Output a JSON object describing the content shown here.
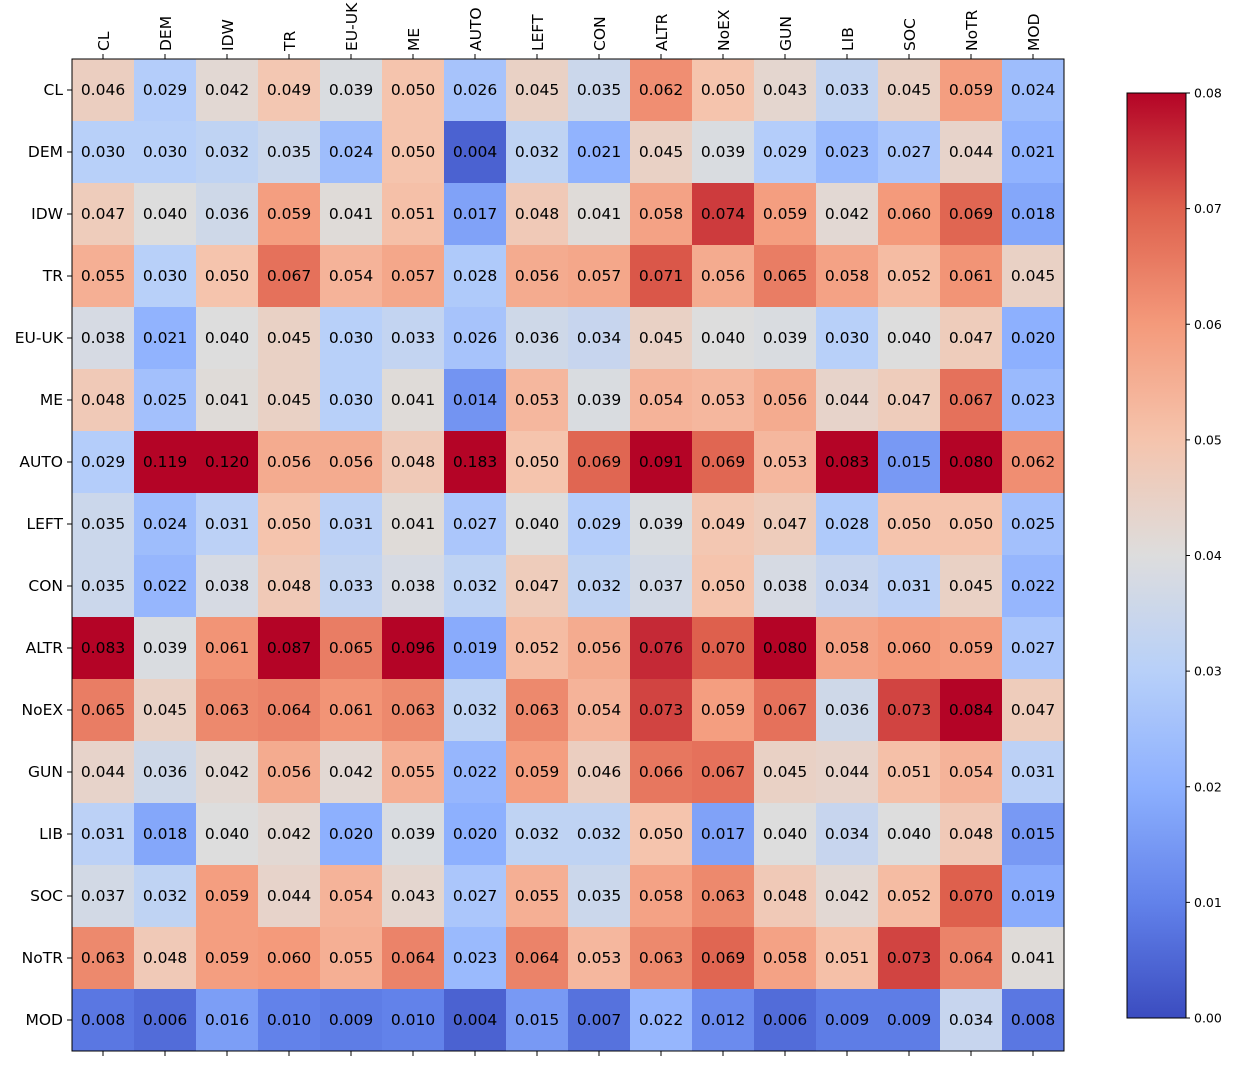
{
  "chart_data": {
    "type": "heatmap",
    "title": "",
    "xlabel": "",
    "ylabel": "",
    "rows": [
      "CL",
      "DEM",
      "IDW",
      "TR",
      "EU-UK",
      "ME",
      "AUTO",
      "LEFT",
      "CON",
      "ALTR",
      "NoEX",
      "GUN",
      "LIB",
      "SOC",
      "NoTR",
      "MOD"
    ],
    "columns": [
      "CL",
      "DEM",
      "IDW",
      "TR",
      "EU-UK",
      "ME",
      "AUTO",
      "LEFT",
      "CON",
      "ALTR",
      "NoEX",
      "GUN",
      "LIB",
      "SOC",
      "NoTR",
      "MOD"
    ],
    "values": [
      [
        0.046,
        0.029,
        0.042,
        0.049,
        0.039,
        0.05,
        0.026,
        0.045,
        0.035,
        0.062,
        0.05,
        0.043,
        0.033,
        0.045,
        0.059,
        0.024
      ],
      [
        0.03,
        0.03,
        0.032,
        0.035,
        0.024,
        0.05,
        0.004,
        0.032,
        0.021,
        0.045,
        0.039,
        0.029,
        0.023,
        0.027,
        0.044,
        0.021
      ],
      [
        0.047,
        0.04,
        0.036,
        0.059,
        0.041,
        0.051,
        0.017,
        0.048,
        0.041,
        0.058,
        0.074,
        0.059,
        0.042,
        0.06,
        0.069,
        0.018
      ],
      [
        0.055,
        0.03,
        0.05,
        0.067,
        0.054,
        0.057,
        0.028,
        0.056,
        0.057,
        0.071,
        0.056,
        0.065,
        0.058,
        0.052,
        0.061,
        0.045
      ],
      [
        0.038,
        0.021,
        0.04,
        0.045,
        0.03,
        0.033,
        0.026,
        0.036,
        0.034,
        0.045,
        0.04,
        0.039,
        0.03,
        0.04,
        0.047,
        0.02
      ],
      [
        0.048,
        0.025,
        0.041,
        0.045,
        0.03,
        0.041,
        0.014,
        0.053,
        0.039,
        0.054,
        0.053,
        0.056,
        0.044,
        0.047,
        0.067,
        0.023
      ],
      [
        0.029,
        0.119,
        0.12,
        0.056,
        0.056,
        0.048,
        0.183,
        0.05,
        0.069,
        0.091,
        0.069,
        0.053,
        0.083,
        0.015,
        0.08,
        0.062
      ],
      [
        0.035,
        0.024,
        0.031,
        0.05,
        0.031,
        0.041,
        0.027,
        0.04,
        0.029,
        0.039,
        0.049,
        0.047,
        0.028,
        0.05,
        0.05,
        0.025
      ],
      [
        0.035,
        0.022,
        0.038,
        0.048,
        0.033,
        0.038,
        0.032,
        0.047,
        0.032,
        0.037,
        0.05,
        0.038,
        0.034,
        0.031,
        0.045,
        0.022
      ],
      [
        0.083,
        0.039,
        0.061,
        0.087,
        0.065,
        0.096,
        0.019,
        0.052,
        0.056,
        0.076,
        0.07,
        0.08,
        0.058,
        0.06,
        0.059,
        0.027
      ],
      [
        0.065,
        0.045,
        0.063,
        0.064,
        0.061,
        0.063,
        0.032,
        0.063,
        0.054,
        0.073,
        0.059,
        0.067,
        0.036,
        0.073,
        0.084,
        0.047
      ],
      [
        0.044,
        0.036,
        0.042,
        0.056,
        0.042,
        0.055,
        0.022,
        0.059,
        0.046,
        0.066,
        0.067,
        0.045,
        0.044,
        0.051,
        0.054,
        0.031
      ],
      [
        0.031,
        0.018,
        0.04,
        0.042,
        0.02,
        0.039,
        0.02,
        0.032,
        0.032,
        0.05,
        0.017,
        0.04,
        0.034,
        0.04,
        0.048,
        0.015
      ],
      [
        0.037,
        0.032,
        0.059,
        0.044,
        0.054,
        0.043,
        0.027,
        0.055,
        0.035,
        0.058,
        0.063,
        0.048,
        0.042,
        0.052,
        0.07,
        0.019
      ],
      [
        0.063,
        0.048,
        0.059,
        0.06,
        0.055,
        0.064,
        0.023,
        0.064,
        0.053,
        0.063,
        0.069,
        0.058,
        0.051,
        0.073,
        0.064,
        0.041
      ],
      [
        0.008,
        0.006,
        0.016,
        0.01,
        0.009,
        0.01,
        0.004,
        0.015,
        0.007,
        0.022,
        0.012,
        0.006,
        0.009,
        0.009,
        0.034,
        0.008
      ]
    ],
    "cell_labels": [
      [
        "0.046",
        "0.029",
        "0.042",
        "0.049",
        "0.039",
        "0.050",
        "0.026",
        "0.045",
        "0.035",
        "0.062",
        "0.050",
        "0.043",
        "0.033",
        "0.045",
        "0.059",
        "0.024"
      ],
      [
        "0.030",
        "0.030",
        "0.032",
        "0.035",
        "0.024",
        "0.050",
        "0.004",
        "0.032",
        "0.021",
        "0.045",
        "0.039",
        "0.029",
        "0.023",
        "0.027",
        "0.044",
        "0.021"
      ],
      [
        "0.047",
        "0.040",
        "0.036",
        "0.059",
        "0.041",
        "0.051",
        "0.017",
        "0.048",
        "0.041",
        "0.058",
        "0.074",
        "0.059",
        "0.042",
        "0.060",
        "0.069",
        "0.018"
      ],
      [
        "0.055",
        "0.030",
        "0.050",
        "0.067",
        "0.054",
        "0.057",
        "0.028",
        "0.056",
        "0.057",
        "0.071",
        "0.056",
        "0.065",
        "0.058",
        "0.052",
        "0.061",
        "0.045"
      ],
      [
        "0.038",
        "0.021",
        "0.040",
        "0.045",
        "0.030",
        "0.033",
        "0.026",
        "0.036",
        "0.034",
        "0.045",
        "0.040",
        "0.039",
        "0.030",
        "0.040",
        "0.047",
        "0.020"
      ],
      [
        "0.048",
        "0.025",
        "0.041",
        "0.045",
        "0.030",
        "0.041",
        "0.014",
        "0.053",
        "0.039",
        "0.054",
        "0.053",
        "0.056",
        "0.044",
        "0.047",
        "0.067",
        "0.023"
      ],
      [
        "0.029",
        "0.119",
        "0.120",
        "0.056",
        "0.056",
        "0.048",
        "0.183",
        "0.050",
        "0.069",
        "0.091",
        "0.069",
        "0.053",
        "0.083",
        "0.015",
        "0.080",
        "0.062"
      ],
      [
        "0.035",
        "0.024",
        "0.031",
        "0.050",
        "0.031",
        "0.041",
        "0.027",
        "0.040",
        "0.029",
        "0.039",
        "0.049",
        "0.047",
        "0.028",
        "0.050",
        "0.050",
        "0.025"
      ],
      [
        "0.035",
        "0.022",
        "0.038",
        "0.048",
        "0.033",
        "0.038",
        "0.032",
        "0.047",
        "0.032",
        "0.037",
        "0.050",
        "0.038",
        "0.034",
        "0.031",
        "0.045",
        "0.022"
      ],
      [
        "0.083",
        "0.039",
        "0.061",
        "0.087",
        "0.065",
        "0.096",
        "0.019",
        "0.052",
        "0.056",
        "0.076",
        "0.070",
        "0.080",
        "0.058",
        "0.060",
        "0.059",
        "0.027"
      ],
      [
        "0.065",
        "0.045",
        "0.063",
        "0.064",
        "0.061",
        "0.063",
        "0.032",
        "0.063",
        "0.054",
        "0.073",
        "0.059",
        "0.067",
        "0.036",
        "0.073",
        "0.084",
        "0.047"
      ],
      [
        "0.044",
        "0.036",
        "0.042",
        "0.056",
        "0.042",
        "0.055",
        "0.022",
        "0.059",
        "0.046",
        "0.066",
        "0.067",
        "0.045",
        "0.044",
        "0.051",
        "0.054",
        "0.031"
      ],
      [
        "0.031",
        "0.018",
        "0.040",
        "0.042",
        "0.020",
        "0.039",
        "0.020",
        "0.032",
        "0.032",
        "0.050",
        "0.017",
        "0.040",
        "0.034",
        "0.040",
        "0.048",
        "0.015"
      ],
      [
        "0.037",
        "0.032",
        "0.059",
        "0.044",
        "0.054",
        "0.043",
        "0.027",
        "0.055",
        "0.035",
        "0.058",
        "0.063",
        "0.048",
        "0.042",
        "0.052",
        "0.070",
        "0.019"
      ],
      [
        "0.063",
        "0.048",
        "0.059",
        "0.060",
        "0.055",
        "0.064",
        "0.023",
        "0.064",
        "0.053",
        "0.063",
        "0.069",
        "0.058",
        "0.051",
        "0.073",
        "0.064",
        "0.041"
      ],
      [
        "0.008",
        "0.006",
        "0.016",
        "0.010",
        "0.009",
        "0.010",
        "0.004",
        "0.015",
        "0.007",
        "0.022",
        "0.012",
        "0.006",
        "0.009",
        "0.009",
        "0.034",
        "0.008"
      ]
    ],
    "colormap": "coolwarm",
    "vmin": 0.0,
    "vmax": 0.08,
    "colorbar": {
      "ticks": [
        0.0,
        0.01,
        0.02,
        0.03,
        0.04,
        0.05,
        0.06,
        0.07,
        0.08
      ],
      "tick_labels": [
        "0.00",
        "0.01",
        "0.02",
        "0.03",
        "0.04",
        "0.05",
        "0.06",
        "0.07",
        "0.08"
      ],
      "placement": "right"
    },
    "x_tick_position": "top",
    "grid": false
  }
}
